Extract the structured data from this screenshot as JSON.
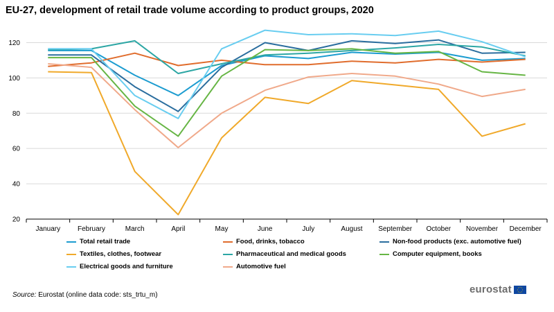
{
  "title": "EU-27, development of retail trade volume according to product groups, 2020",
  "source": {
    "label": "Source:",
    "text": "Eurostat (online data code: sts_trtu_m)"
  },
  "logo": {
    "text": "eurostat",
    "flag_icon": "eu-flag-icon"
  },
  "colors": {
    "grid": "#d9d9d9",
    "axis": "#000000"
  },
  "chart_data": {
    "type": "line",
    "title": "EU-27, development of retail trade volume according to product groups, 2020",
    "xlabel": "",
    "ylabel": "",
    "categories": [
      "January",
      "February",
      "March",
      "April",
      "May",
      "June",
      "July",
      "August",
      "September",
      "October",
      "November",
      "December"
    ],
    "ylim": [
      20,
      130
    ],
    "yticks": [
      20,
      40,
      60,
      80,
      100,
      120
    ],
    "grid": "horizontal",
    "legend_position": "bottom",
    "series": [
      {
        "name": "Total retail trade",
        "color": "#1c9cd0",
        "values": [
          115.5,
          115.5,
          101.5,
          90,
          107,
          112.5,
          111,
          114.5,
          113.5,
          114.5,
          110,
          111
        ]
      },
      {
        "name": "Food, drinks, tobacco",
        "color": "#e06c2c",
        "values": [
          106.5,
          108.5,
          114,
          107,
          110,
          107.5,
          107.5,
          109.5,
          108.5,
          110.5,
          109,
          110.5
        ]
      },
      {
        "name": "Non-food products (exc. automotive fuel)",
        "color": "#2a6d9e",
        "values": [
          113,
          113,
          95,
          81,
          106,
          120,
          115.5,
          121,
          119.5,
          121.5,
          114,
          114.5
        ]
      },
      {
        "name": "Textiles, clothes, footwear",
        "color": "#f0a92a",
        "values": [
          103.5,
          103,
          47,
          22.5,
          66,
          89,
          85.5,
          98.5,
          96,
          93.5,
          67,
          74
        ]
      },
      {
        "name": "Pharmaceutical and medical goods",
        "color": "#2ca6a4",
        "values": [
          116,
          116.5,
          121,
          102.5,
          108,
          113,
          114,
          115.5,
          117,
          119,
          117.5,
          112.5
        ]
      },
      {
        "name": "Computer equipment, books",
        "color": "#66b544",
        "values": [
          111.5,
          111.5,
          84,
          67,
          101,
          116,
          115.5,
          116.5,
          114,
          115,
          103.5,
          101.5
        ]
      },
      {
        "name": "Electrical goods and furniture",
        "color": "#68cdf0",
        "values": [
          116.5,
          116.5,
          90,
          77,
          116.5,
          127,
          124.5,
          125,
          124,
          126.5,
          120.5,
          112
        ]
      },
      {
        "name": "Automotive fuel",
        "color": "#f0a98a",
        "values": [
          108,
          106,
          82,
          60.5,
          80,
          93,
          100.5,
          102.5,
          101,
          96.5,
          89.5,
          93.5
        ]
      }
    ]
  }
}
